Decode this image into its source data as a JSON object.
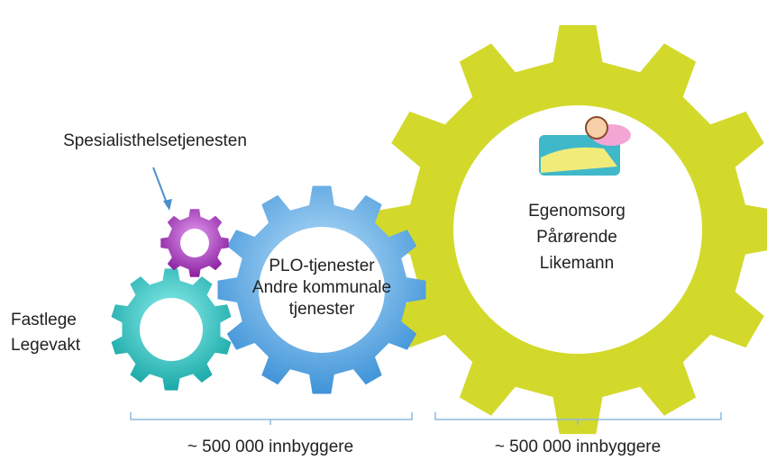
{
  "labels": {
    "specialist": "Spesialisthelsetjenesten",
    "gp": [
      "Fastlege",
      "Legevakt"
    ],
    "municipal": [
      "PLO-tjenester",
      "Andre kommunale",
      "tjenester"
    ],
    "self_care": [
      "Egenomsorg",
      "Pårørende",
      "Likemann"
    ]
  },
  "population": [
    "~ 500 000 innbyggere",
    "~ 500 000 innbyggere"
  ]
}
